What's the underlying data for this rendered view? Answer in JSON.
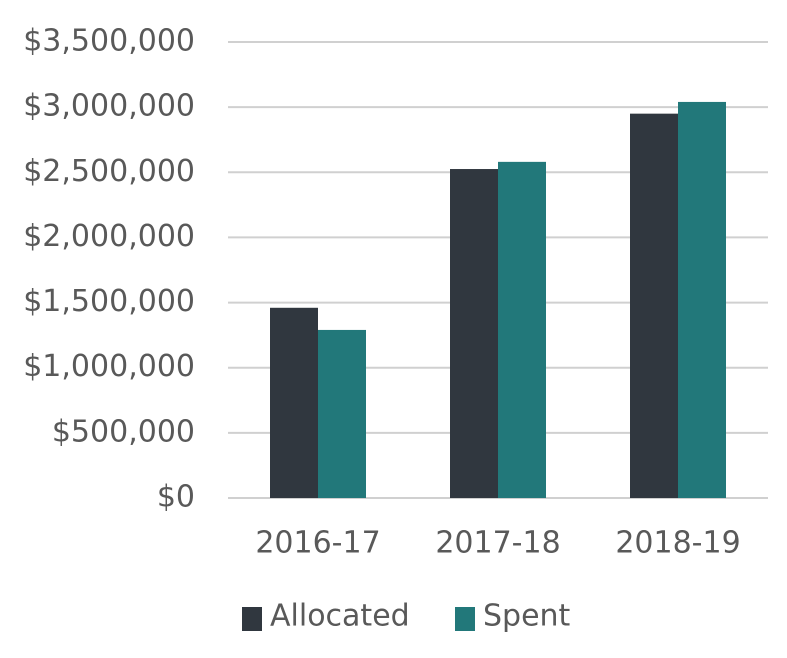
{
  "chart_data": {
    "type": "bar",
    "categories": [
      "2016-17",
      "2017-18",
      "2018-19"
    ],
    "series": [
      {
        "name": "Allocated",
        "color": "#30373f",
        "values": [
          1460000,
          2525000,
          2950000
        ]
      },
      {
        "name": "Spent",
        "color": "#22787a",
        "values": [
          1290000,
          2580000,
          3040000
        ]
      }
    ],
    "ylim": [
      0,
      3500000
    ],
    "yticks": [
      {
        "value": 0,
        "label": "$0"
      },
      {
        "value": 500000,
        "label": "$500,000"
      },
      {
        "value": 1000000,
        "label": "$1,000,000"
      },
      {
        "value": 1500000,
        "label": "$1,500,000"
      },
      {
        "value": 2000000,
        "label": "$2,000,000"
      },
      {
        "value": 2500000,
        "label": "$2,500,000"
      },
      {
        "value": 3000000,
        "label": "$3,000,000"
      },
      {
        "value": 3500000,
        "label": "$3,500,000"
      }
    ],
    "grid": true,
    "legend": "bottom"
  }
}
